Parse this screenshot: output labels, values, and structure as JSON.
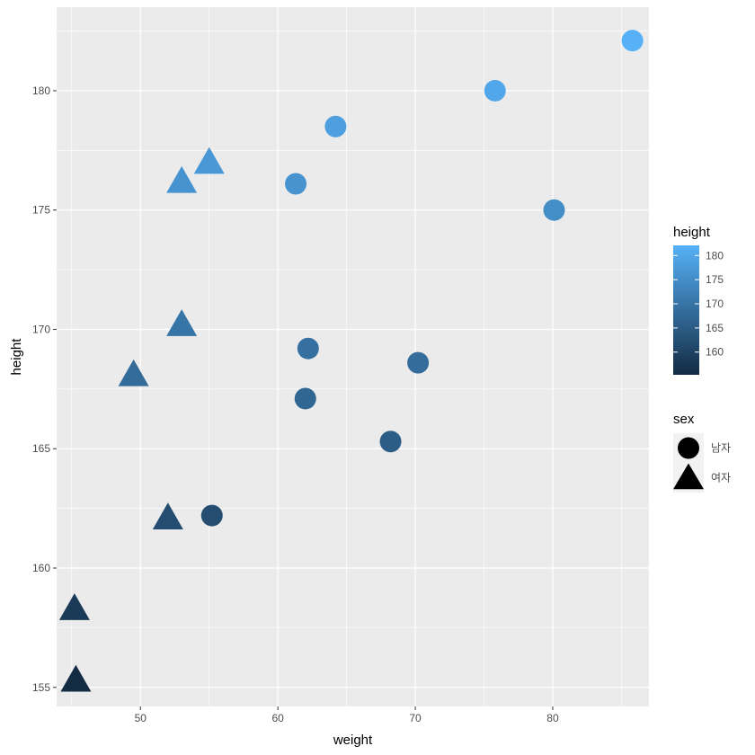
{
  "chart_data": {
    "type": "scatter",
    "xlabel": "weight",
    "ylabel": "height",
    "xlim": [
      43.9,
      87.0
    ],
    "ylim": [
      154.2,
      183.5
    ],
    "x_ticks": [
      50,
      60,
      70,
      80
    ],
    "y_ticks": [
      155,
      160,
      165,
      170,
      175,
      180
    ],
    "grid": true,
    "legend_placement": "right",
    "panel_background": "#EBEBEB",
    "grid_color": "#FFFFFF",
    "color_scale": {
      "title": "height",
      "low_color": "#132B43",
      "high_color": "#56B1F7",
      "domain": [
        155.3,
        182.1
      ],
      "breaks": [
        160,
        165,
        170,
        175,
        180
      ]
    },
    "shape_legend": {
      "title": "sex",
      "entries": [
        {
          "label": "남자",
          "shape": "circle"
        },
        {
          "label": "여자",
          "shape": "triangle"
        }
      ]
    },
    "points": [
      {
        "x": 85.8,
        "y": 182.1,
        "sex": "남자"
      },
      {
        "x": 75.8,
        "y": 180.0,
        "sex": "남자"
      },
      {
        "x": 64.2,
        "y": 178.5,
        "sex": "남자"
      },
      {
        "x": 61.3,
        "y": 176.1,
        "sex": "남자"
      },
      {
        "x": 80.1,
        "y": 175.0,
        "sex": "남자"
      },
      {
        "x": 62.2,
        "y": 169.2,
        "sex": "남자"
      },
      {
        "x": 70.2,
        "y": 168.6,
        "sex": "남자"
      },
      {
        "x": 62.0,
        "y": 167.1,
        "sex": "남자"
      },
      {
        "x": 68.2,
        "y": 165.3,
        "sex": "남자"
      },
      {
        "x": 55.2,
        "y": 162.2,
        "sex": "남자"
      },
      {
        "x": 55.0,
        "y": 177.0,
        "sex": "여자"
      },
      {
        "x": 53.0,
        "y": 176.2,
        "sex": "여자"
      },
      {
        "x": 53.0,
        "y": 170.2,
        "sex": "여자"
      },
      {
        "x": 49.5,
        "y": 168.1,
        "sex": "여자"
      },
      {
        "x": 52.0,
        "y": 162.1,
        "sex": "여자"
      },
      {
        "x": 45.2,
        "y": 158.3,
        "sex": "여자"
      },
      {
        "x": 45.3,
        "y": 155.3,
        "sex": "여자"
      }
    ]
  }
}
